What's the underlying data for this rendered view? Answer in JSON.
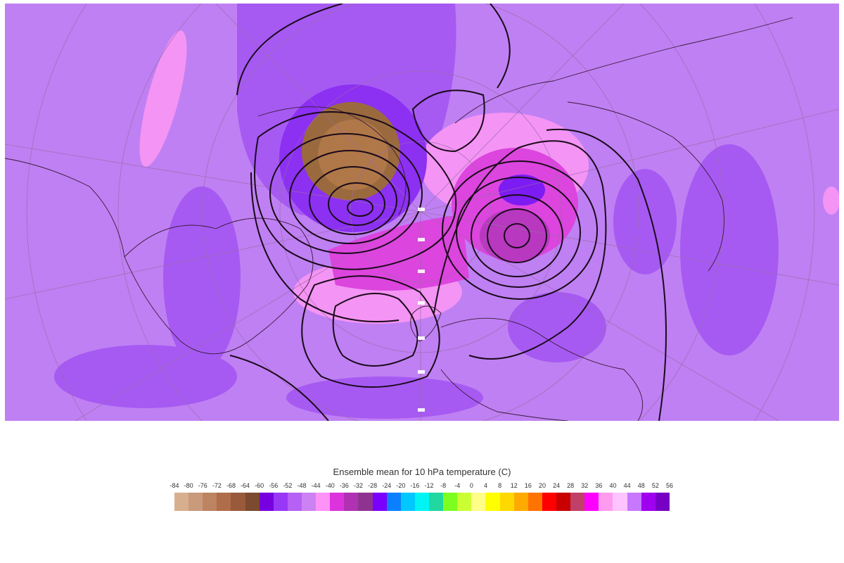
{
  "map": {
    "projection": "north-polar-stereographic",
    "background_color": "#bf80f3",
    "contour_color": "#1a0a1a"
  },
  "legend": {
    "title": "Ensemble mean for 10 hPa temperature (C)",
    "labels": [
      "-84",
      "-80",
      "-76",
      "-72",
      "-68",
      "-64",
      "-60",
      "-56",
      "-52",
      "-48",
      "-44",
      "-40",
      "-36",
      "-32",
      "-28",
      "-24",
      "-20",
      "-16",
      "-12",
      "-8",
      "-4",
      "0",
      "4",
      "8",
      "12",
      "16",
      "20",
      "24",
      "28",
      "32",
      "36",
      "40",
      "44",
      "48",
      "52",
      "56"
    ],
    "colors": [
      "#d8af8e",
      "#c99a7b",
      "#bd8462",
      "#b06d4a",
      "#985a3b",
      "#7b4a2f",
      "#7800e0",
      "#9838f6",
      "#b660f5",
      "#cc82f2",
      "#ff92f6",
      "#dd33dd",
      "#b032b2",
      "#8e3490",
      "#7a00ff",
      "#0a80ff",
      "#00c8ff",
      "#00f4f4",
      "#20d8a0",
      "#7cff20",
      "#ccff33",
      "#ffff88",
      "#ffff00",
      "#ffd800",
      "#ffaa00",
      "#ff7400",
      "#ff0000",
      "#c80000",
      "#c04068",
      "#ff00ff",
      "#ff9bef",
      "#ffc4ff",
      "#c878ff",
      "#a000f0",
      "#7800c4"
    ]
  }
}
